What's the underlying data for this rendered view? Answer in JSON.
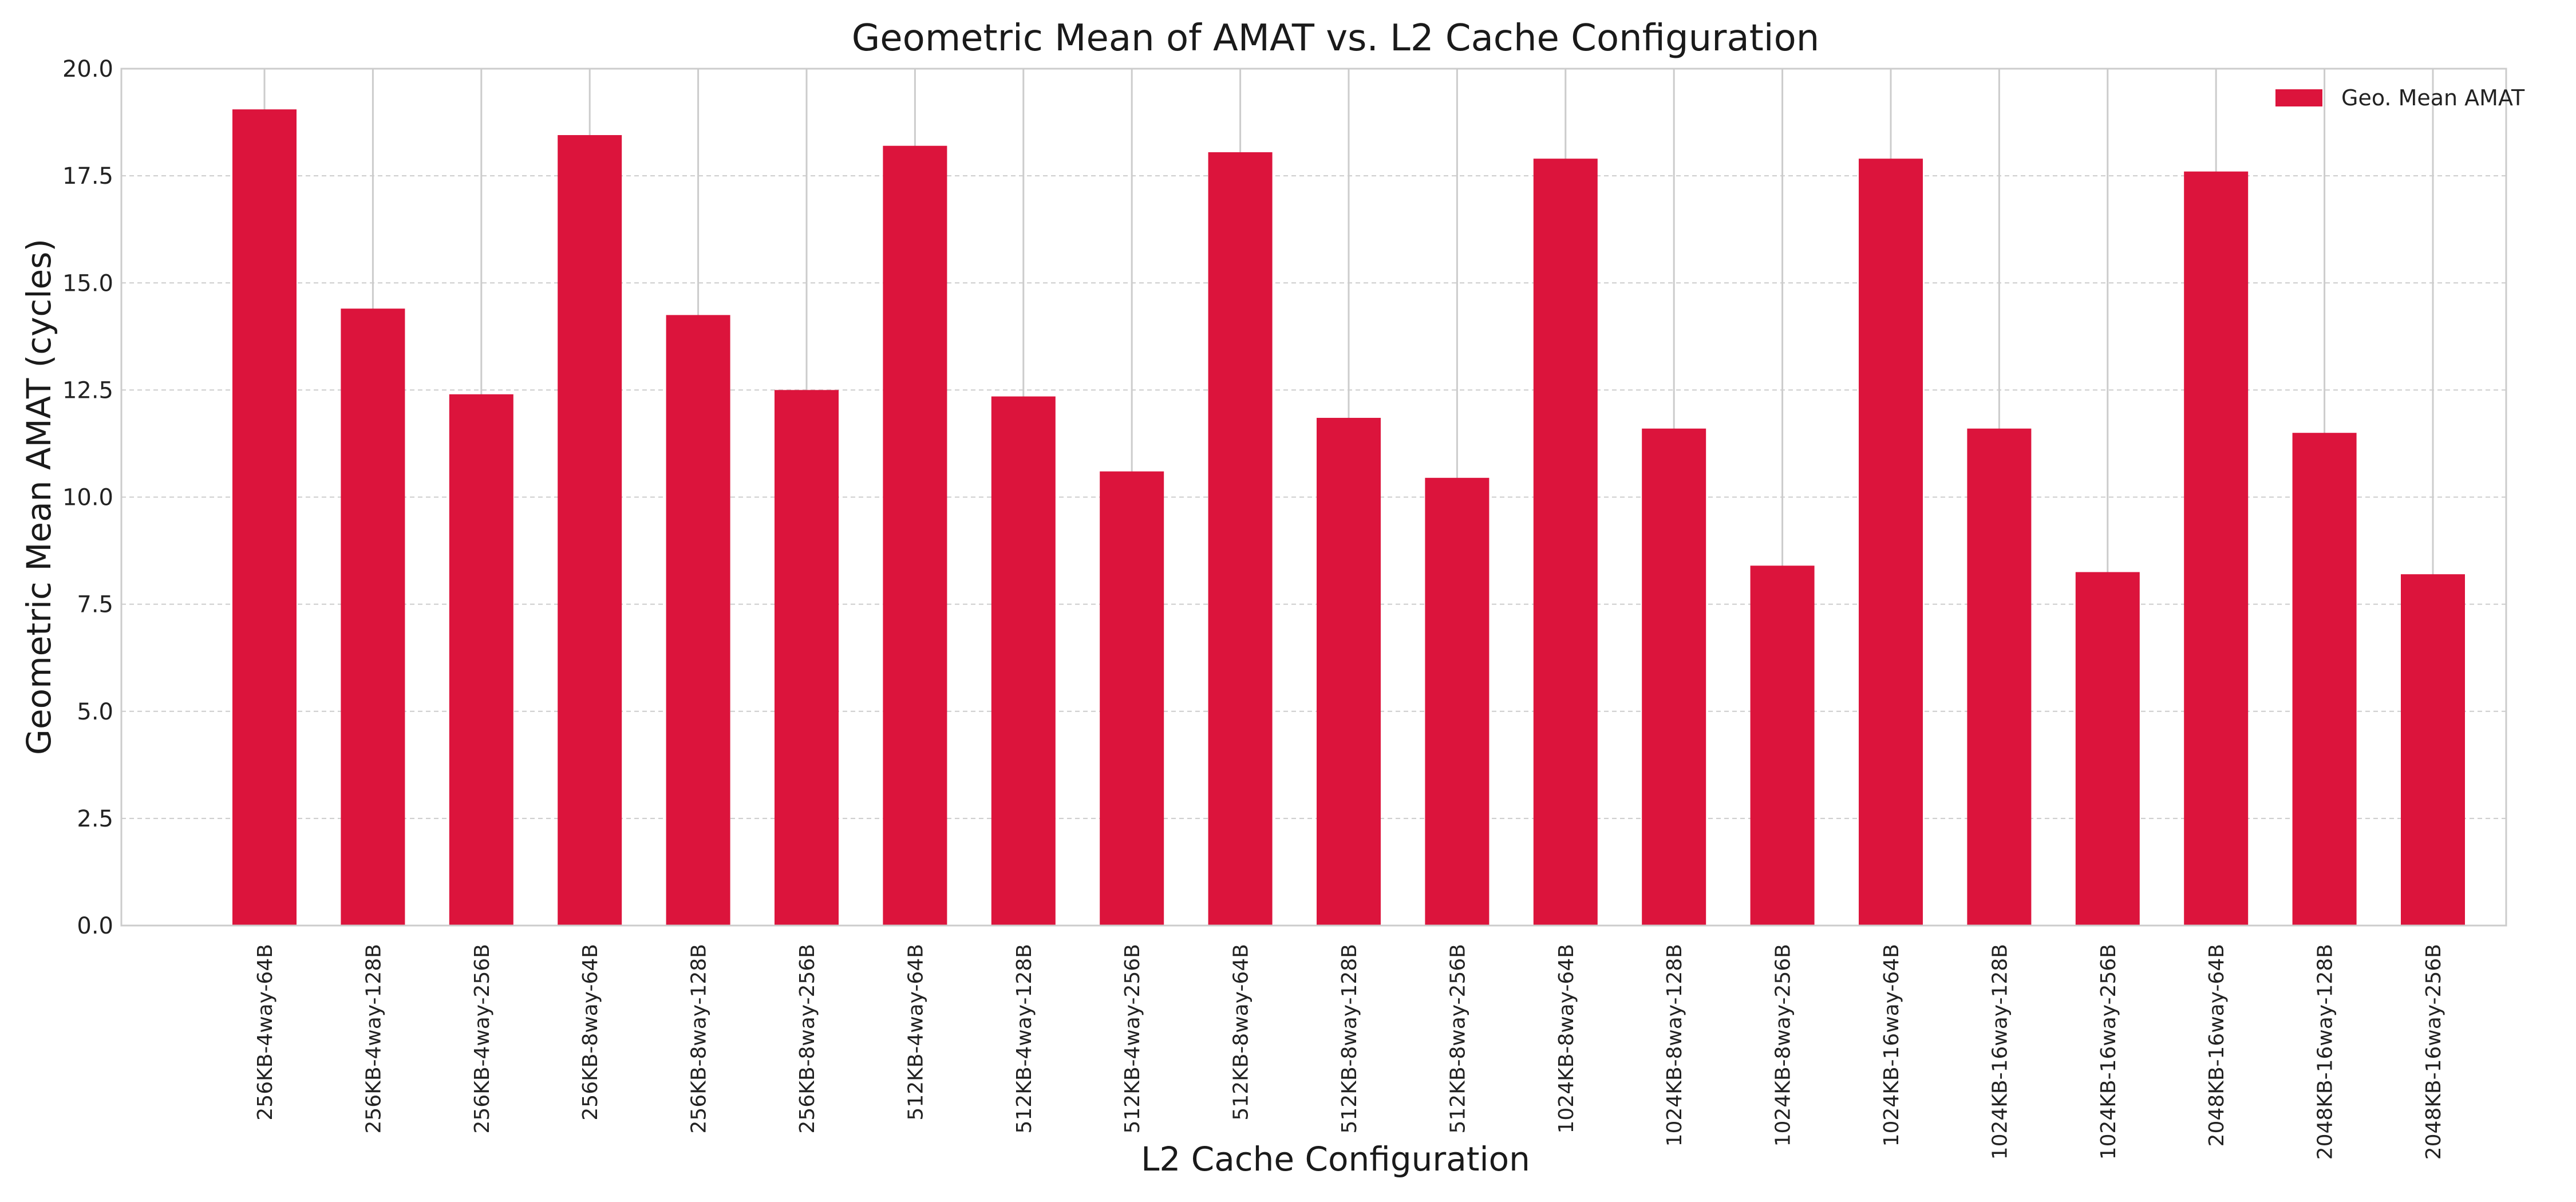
{
  "chart_data": {
    "type": "bar",
    "title": "Geometric Mean of AMAT vs. L2 Cache Configuration",
    "xlabel": "L2 Cache Configuration",
    "ylabel": "Geometric Mean AMAT (cycles)",
    "ylim": [
      0,
      20
    ],
    "yticks": [
      "0.0",
      "2.5",
      "5.0",
      "7.5",
      "10.0",
      "12.5",
      "15.0",
      "17.5",
      "20.0"
    ],
    "grid": true,
    "legend_position": "top-right",
    "categories": [
      "256KB-4way-64B",
      "256KB-4way-128B",
      "256KB-4way-256B",
      "256KB-8way-64B",
      "256KB-8way-128B",
      "256KB-8way-256B",
      "512KB-4way-64B",
      "512KB-4way-128B",
      "512KB-4way-256B",
      "512KB-8way-64B",
      "512KB-8way-128B",
      "512KB-8way-256B",
      "1024KB-8way-64B",
      "1024KB-8way-128B",
      "1024KB-8way-256B",
      "1024KB-16way-64B",
      "1024KB-16way-128B",
      "1024KB-16way-256B",
      "2048KB-16way-64B",
      "2048KB-16way-128B",
      "2048KB-16way-256B"
    ],
    "series": [
      {
        "name": "Geo. Mean AMAT",
        "color": "#dc143c",
        "values": [
          19.05,
          14.4,
          12.4,
          18.45,
          14.25,
          12.5,
          18.2,
          12.35,
          10.6,
          18.05,
          11.85,
          10.45,
          17.9,
          11.6,
          8.4,
          17.9,
          11.6,
          8.25,
          17.6,
          11.5,
          8.2
        ]
      }
    ]
  }
}
